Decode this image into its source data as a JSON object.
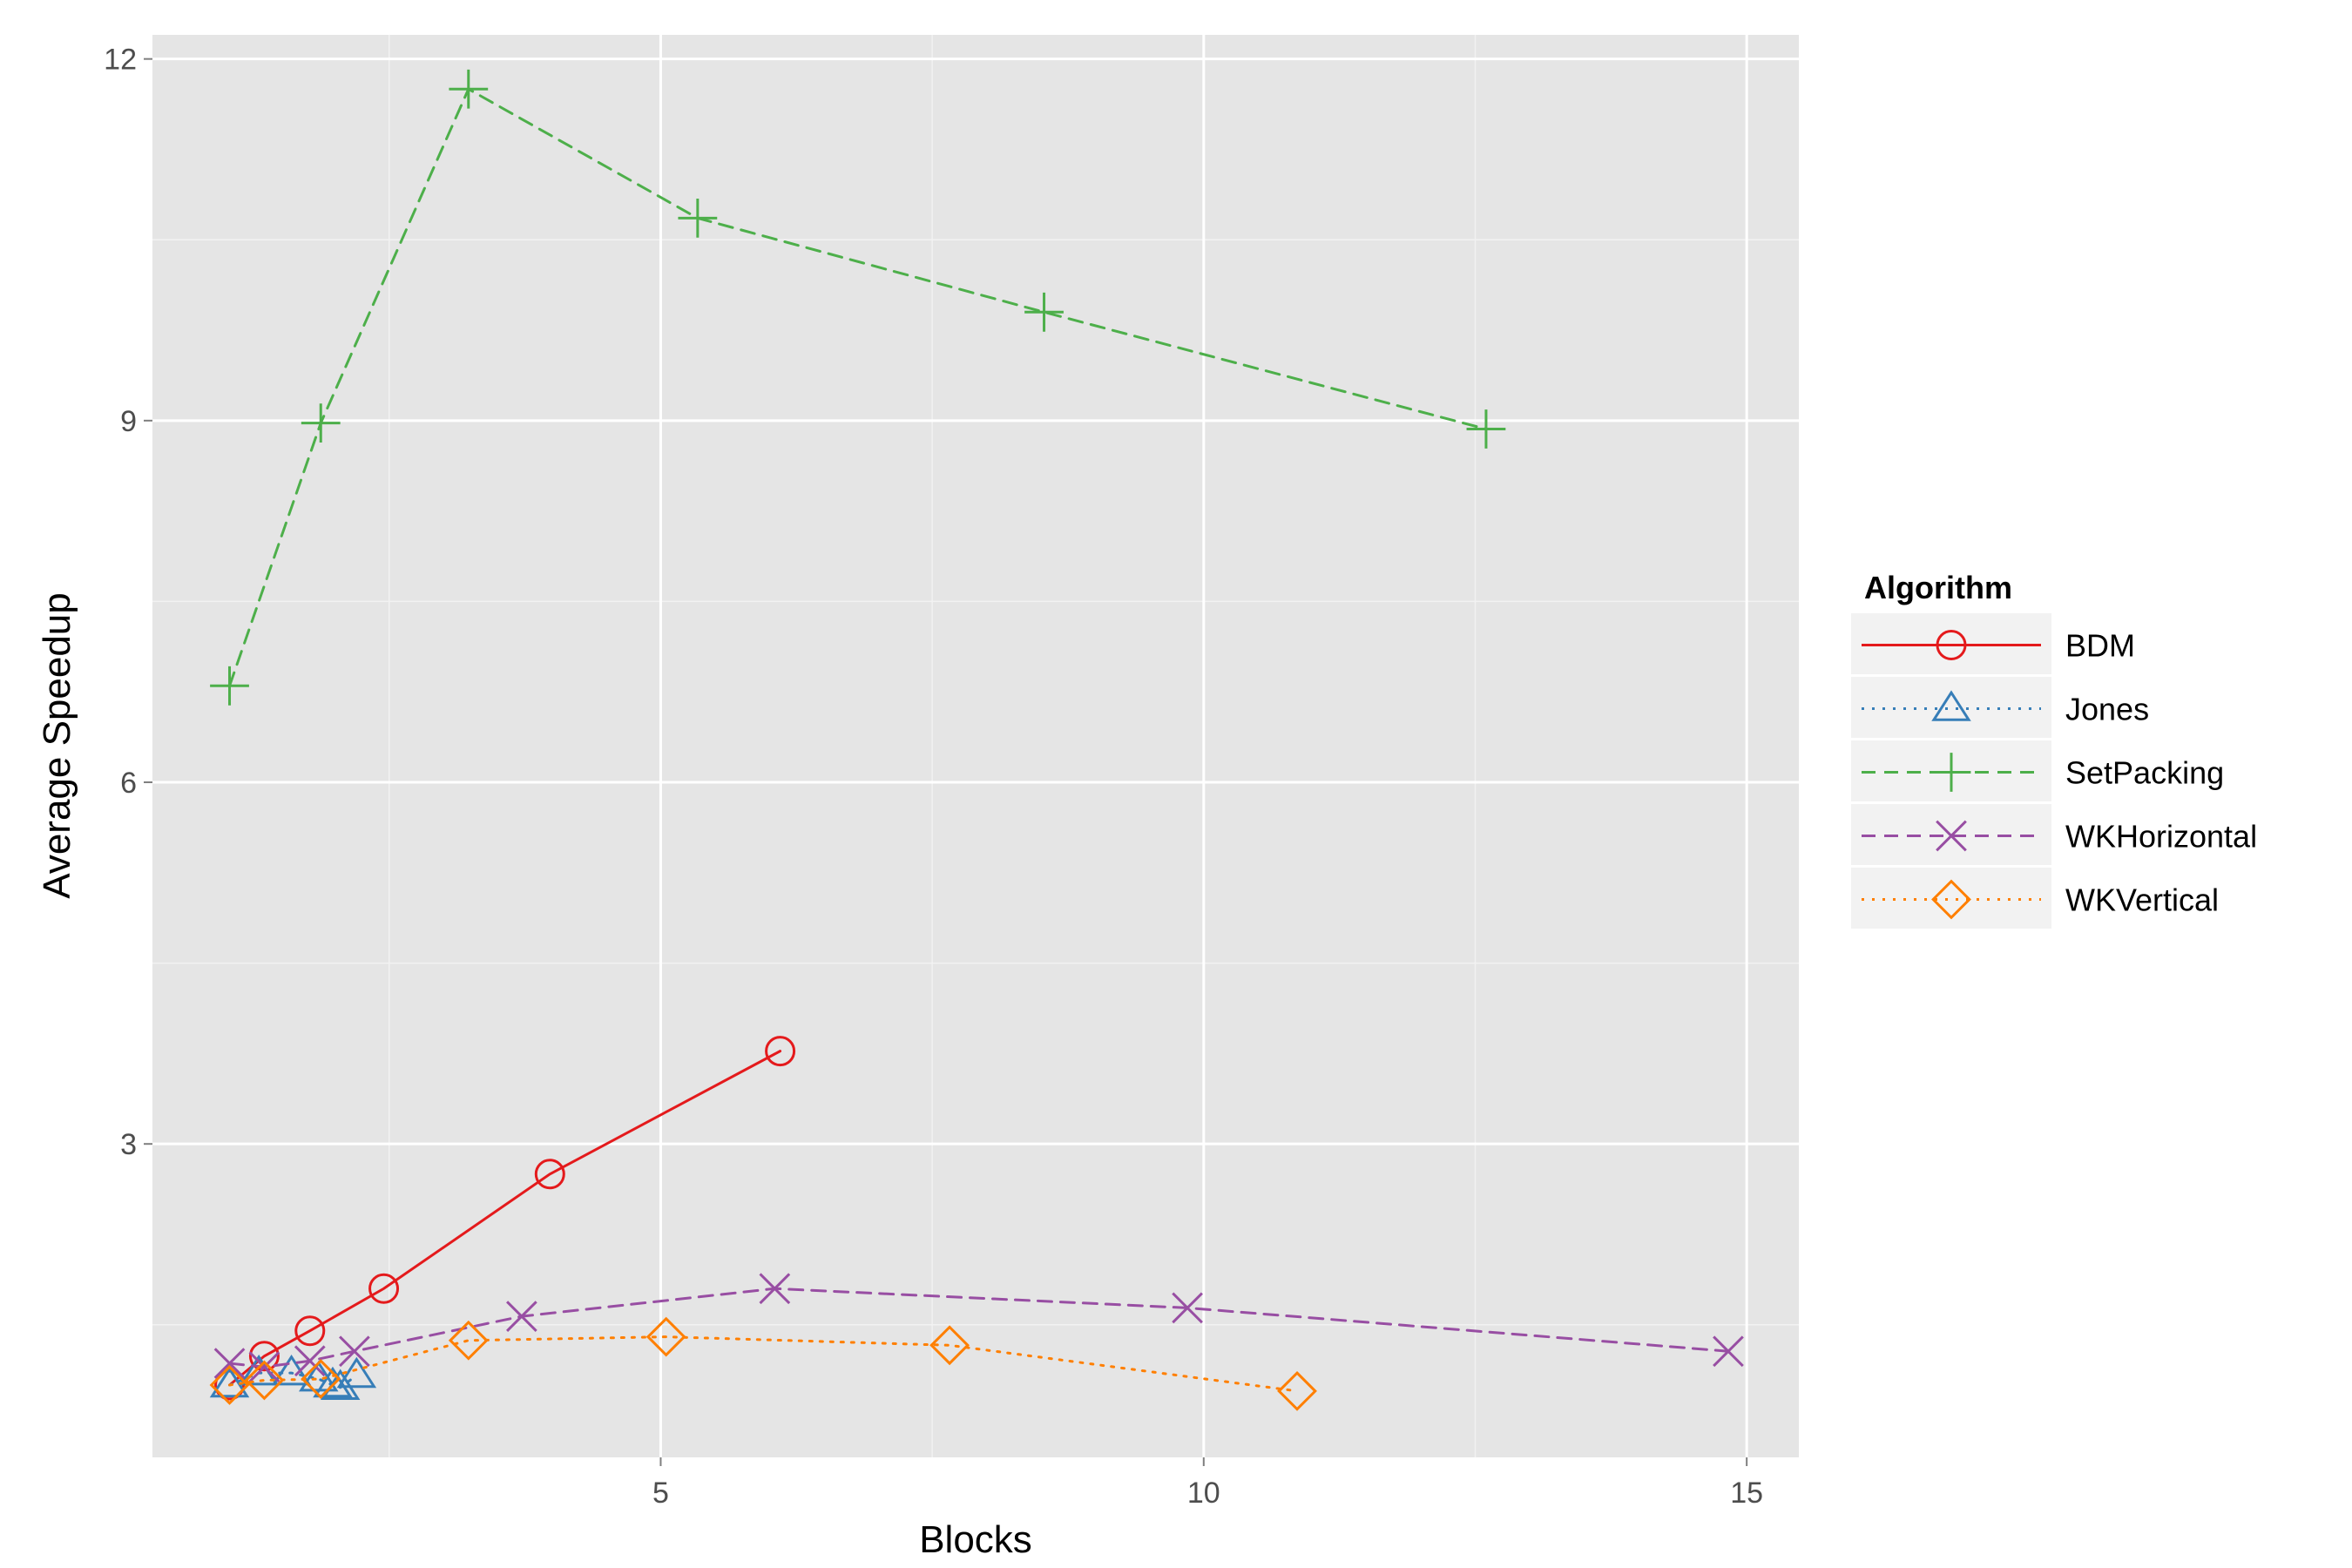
{
  "chart_data": {
    "type": "line",
    "xlabel": "Blocks",
    "ylabel": "Average Speedup",
    "xlim": [
      0.32,
      15.48
    ],
    "ylim": [
      0.4,
      12.2
    ],
    "x_ticks": [
      5,
      10,
      15
    ],
    "y_ticks": [
      3,
      6,
      9,
      12
    ],
    "grid": true,
    "legend": {
      "title": "Algorithm",
      "position": "right"
    },
    "series": [
      {
        "name": "BDM",
        "color": "#e41a1c",
        "line_style": "solid",
        "marker": "circle",
        "points": [
          [
            1.03,
            1.0
          ],
          [
            1.35,
            1.24
          ],
          [
            1.77,
            1.45
          ],
          [
            2.45,
            1.8
          ],
          [
            3.98,
            2.75
          ],
          [
            6.1,
            3.77
          ]
        ]
      },
      {
        "name": "Jones",
        "color": "#377eb8",
        "line_style": "dotted",
        "marker": "triangle",
        "points": [
          [
            1.03,
            1.0
          ],
          [
            1.3,
            1.1
          ],
          [
            1.6,
            1.1
          ],
          [
            1.85,
            1.05
          ],
          [
            1.98,
            1.0
          ],
          [
            2.05,
            0.98
          ],
          [
            2.2,
            1.08
          ]
        ]
      },
      {
        "name": "SetPacking",
        "color": "#4daf4a",
        "line_style": "dashed",
        "marker": "plus",
        "points": [
          [
            1.03,
            6.8
          ],
          [
            1.87,
            8.98
          ],
          [
            3.23,
            11.75
          ],
          [
            5.34,
            10.68
          ],
          [
            8.53,
            9.9
          ],
          [
            12.6,
            8.93
          ]
        ]
      },
      {
        "name": "WKHorizontal",
        "color": "#984ea3",
        "line_style": "dashed",
        "marker": "x",
        "points": [
          [
            1.03,
            1.18
          ],
          [
            1.35,
            1.15
          ],
          [
            1.77,
            1.2
          ],
          [
            2.18,
            1.28
          ],
          [
            3.72,
            1.57
          ],
          [
            6.05,
            1.8
          ],
          [
            9.85,
            1.64
          ],
          [
            14.83,
            1.28
          ]
        ]
      },
      {
        "name": "WKVertical",
        "color": "#ff7f00",
        "line_style": "dotted",
        "marker": "diamond",
        "points": [
          [
            1.03,
            1.0
          ],
          [
            1.35,
            1.04
          ],
          [
            1.87,
            1.05
          ],
          [
            3.23,
            1.37
          ],
          [
            5.05,
            1.4
          ],
          [
            7.66,
            1.33
          ],
          [
            10.86,
            0.95
          ]
        ]
      }
    ]
  }
}
